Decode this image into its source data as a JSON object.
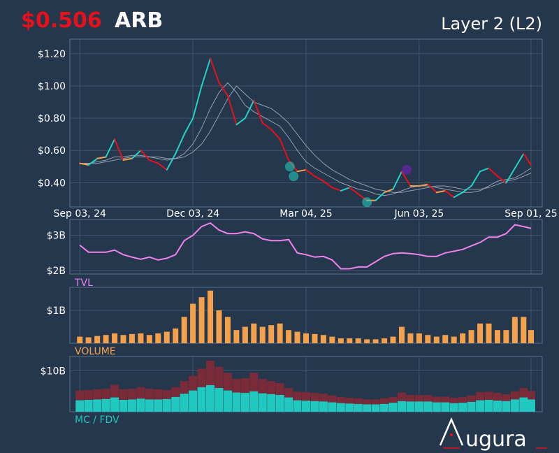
{
  "header": {
    "price": "$0.506",
    "ticker": "ARB",
    "sector": "Layer 2 (L2)"
  },
  "colors": {
    "up": "#22d3c5",
    "down": "#e8101a",
    "neutral": "#f5a04a",
    "tvl": "#ee82ee",
    "volume": "#f5a04a",
    "mc": "#1fc9c0",
    "fdv": "#7a2b3a",
    "ma": "#b9c2cc",
    "background": "#24374d",
    "panel_border": "#5a7390"
  },
  "logo": {
    "text": "ugura",
    "icon": "augura-a-logo"
  },
  "chart_data": [
    {
      "type": "line",
      "panel": "price",
      "x_tick_labels": [
        "Sep 03, 24",
        "Dec 03, 24",
        "Mar 04, 25",
        "Jun 03, 25",
        "Sep 01, 25"
      ],
      "y_tick_labels": [
        "$0.40",
        "$0.60",
        "$0.80",
        "$1.00",
        "$1.20"
      ],
      "ylim": [
        0.25,
        1.29
      ],
      "x": [
        "2024-09-03",
        "2024-09-10",
        "2024-09-17",
        "2024-09-24",
        "2024-10-01",
        "2024-10-08",
        "2024-10-15",
        "2024-10-22",
        "2024-10-29",
        "2024-11-05",
        "2024-11-12",
        "2024-11-19",
        "2024-11-26",
        "2024-12-03",
        "2024-12-10",
        "2024-12-17",
        "2024-12-24",
        "2024-12-31",
        "2025-01-07",
        "2025-01-14",
        "2025-01-21",
        "2025-01-28",
        "2025-02-04",
        "2025-02-11",
        "2025-02-18",
        "2025-02-25",
        "2025-03-04",
        "2025-03-11",
        "2025-03-18",
        "2025-03-25",
        "2025-04-01",
        "2025-04-08",
        "2025-04-15",
        "2025-04-22",
        "2025-04-29",
        "2025-05-06",
        "2025-05-13",
        "2025-05-20",
        "2025-05-27",
        "2025-06-03",
        "2025-06-10",
        "2025-06-17",
        "2025-06-24",
        "2025-07-01",
        "2025-07-08",
        "2025-07-15",
        "2025-07-22",
        "2025-07-29",
        "2025-08-05",
        "2025-08-12",
        "2025-08-19",
        "2025-08-26",
        "2025-09-01"
      ],
      "series": [
        {
          "role": "price",
          "values": [
            0.52,
            0.51,
            0.55,
            0.56,
            0.67,
            0.54,
            0.55,
            0.6,
            0.54,
            0.52,
            0.48,
            0.58,
            0.7,
            0.8,
            1.0,
            1.17,
            1.02,
            0.94,
            0.76,
            0.8,
            0.91,
            0.77,
            0.73,
            0.67,
            0.54,
            0.47,
            0.48,
            0.44,
            0.41,
            0.37,
            0.35,
            0.37,
            0.33,
            0.29,
            0.29,
            0.34,
            0.36,
            0.47,
            0.38,
            0.38,
            0.39,
            0.34,
            0.35,
            0.31,
            0.34,
            0.38,
            0.47,
            0.49,
            0.44,
            0.4,
            0.49,
            0.58,
            0.51
          ]
        },
        {
          "role": "ma-short",
          "values": [
            0.52,
            0.52,
            0.53,
            0.54,
            0.56,
            0.56,
            0.57,
            0.57,
            0.56,
            0.55,
            0.54,
            0.55,
            0.58,
            0.64,
            0.74,
            0.86,
            0.96,
            1.02,
            0.96,
            0.88,
            0.84,
            0.81,
            0.78,
            0.75,
            0.68,
            0.6,
            0.53,
            0.49,
            0.46,
            0.43,
            0.4,
            0.38,
            0.36,
            0.35,
            0.33,
            0.32,
            0.33,
            0.35,
            0.37,
            0.38,
            0.38,
            0.37,
            0.36,
            0.35,
            0.34,
            0.34,
            0.35,
            0.38,
            0.41,
            0.42,
            0.43,
            0.46,
            0.49
          ]
        },
        {
          "role": "ma-long",
          "values": [
            0.52,
            0.52,
            0.52,
            0.53,
            0.54,
            0.55,
            0.56,
            0.56,
            0.56,
            0.56,
            0.55,
            0.55,
            0.56,
            0.59,
            0.64,
            0.72,
            0.82,
            0.92,
            1.0,
            0.95,
            0.9,
            0.88,
            0.86,
            0.82,
            0.77,
            0.7,
            0.63,
            0.57,
            0.52,
            0.48,
            0.45,
            0.42,
            0.4,
            0.38,
            0.36,
            0.35,
            0.34,
            0.34,
            0.35,
            0.36,
            0.37,
            0.38,
            0.38,
            0.37,
            0.36,
            0.36,
            0.36,
            0.37,
            0.39,
            0.41,
            0.42,
            0.44,
            0.46
          ]
        }
      ],
      "markers": [
        {
          "x": "2025-02-19",
          "y": 0.5,
          "color": "#22d3c5"
        },
        {
          "x": "2025-02-22",
          "y": 0.44,
          "color": "#22d3c5"
        },
        {
          "x": "2025-04-22",
          "y": 0.28,
          "color": "#22d3c5"
        },
        {
          "x": "2025-05-24",
          "y": 0.48,
          "color": "#7a22c8"
        }
      ]
    },
    {
      "type": "line",
      "panel": "tvl",
      "title": "TVL",
      "y_tick_labels": [
        "$2B",
        "$3B"
      ],
      "ylim": [
        1.9,
        3.45
      ],
      "values": [
        2.72,
        2.52,
        2.52,
        2.52,
        2.58,
        2.45,
        2.38,
        2.32,
        2.38,
        2.3,
        2.35,
        2.45,
        2.85,
        3.0,
        3.25,
        3.35,
        3.15,
        3.05,
        3.05,
        3.1,
        3.05,
        2.9,
        2.85,
        2.85,
        2.88,
        2.5,
        2.45,
        2.38,
        2.4,
        2.3,
        2.05,
        2.05,
        2.1,
        2.1,
        2.25,
        2.4,
        2.48,
        2.5,
        2.48,
        2.45,
        2.4,
        2.4,
        2.5,
        2.55,
        2.6,
        2.7,
        2.8,
        2.95,
        2.95,
        3.05,
        3.3,
        3.25,
        3.2
      ]
    },
    {
      "type": "bar",
      "panel": "volume",
      "title": "VOLUME",
      "y_tick_labels": [
        "$1B"
      ],
      "ylim": [
        0,
        1.7
      ],
      "values": [
        0.2,
        0.18,
        0.22,
        0.25,
        0.3,
        0.25,
        0.28,
        0.3,
        0.25,
        0.3,
        0.35,
        0.45,
        0.8,
        1.2,
        1.4,
        1.6,
        1.0,
        0.8,
        0.4,
        0.5,
        0.6,
        0.5,
        0.55,
        0.6,
        0.4,
        0.35,
        0.3,
        0.28,
        0.25,
        0.2,
        0.15,
        0.15,
        0.15,
        0.12,
        0.12,
        0.15,
        0.2,
        0.5,
        0.3,
        0.3,
        0.25,
        0.2,
        0.25,
        0.2,
        0.3,
        0.4,
        0.6,
        0.6,
        0.4,
        0.4,
        0.8,
        0.8,
        0.4
      ]
    },
    {
      "type": "bar",
      "panel": "mc-fdv",
      "title": "MC / FDV",
      "y_tick_labels": [
        "$10B"
      ],
      "ylim": [
        0,
        13.5
      ],
      "series": [
        {
          "role": "mc",
          "values": [
            2.8,
            2.9,
            3.0,
            3.1,
            3.5,
            2.9,
            3.0,
            3.2,
            3.0,
            3.0,
            3.1,
            3.6,
            4.4,
            5.2,
            6.0,
            6.5,
            5.8,
            5.2,
            4.7,
            4.6,
            5.0,
            4.5,
            4.3,
            4.1,
            3.5,
            2.8,
            2.7,
            2.6,
            2.5,
            2.3,
            2.1,
            2.0,
            1.9,
            1.8,
            1.8,
            1.9,
            2.2,
            2.6,
            2.5,
            2.5,
            2.5,
            2.3,
            2.3,
            2.1,
            2.2,
            2.4,
            2.8,
            2.9,
            2.7,
            2.6,
            3.0,
            3.5,
            3.0
          ]
        },
        {
          "role": "fdv",
          "values": [
            5.2,
            5.3,
            5.5,
            5.6,
            6.6,
            5.5,
            5.6,
            6.0,
            5.6,
            5.5,
            5.3,
            6.0,
            7.5,
            8.8,
            10.5,
            12.5,
            11.0,
            9.5,
            8.0,
            8.2,
            9.5,
            8.0,
            7.5,
            7.0,
            5.8,
            4.9,
            4.8,
            4.6,
            4.4,
            4.0,
            3.6,
            3.4,
            3.3,
            3.0,
            3.0,
            3.3,
            3.6,
            4.7,
            4.1,
            4.1,
            4.1,
            3.7,
            3.7,
            3.4,
            3.6,
            4.0,
            4.8,
            4.9,
            4.6,
            4.3,
            5.0,
            5.8,
            5.1
          ]
        }
      ]
    }
  ]
}
